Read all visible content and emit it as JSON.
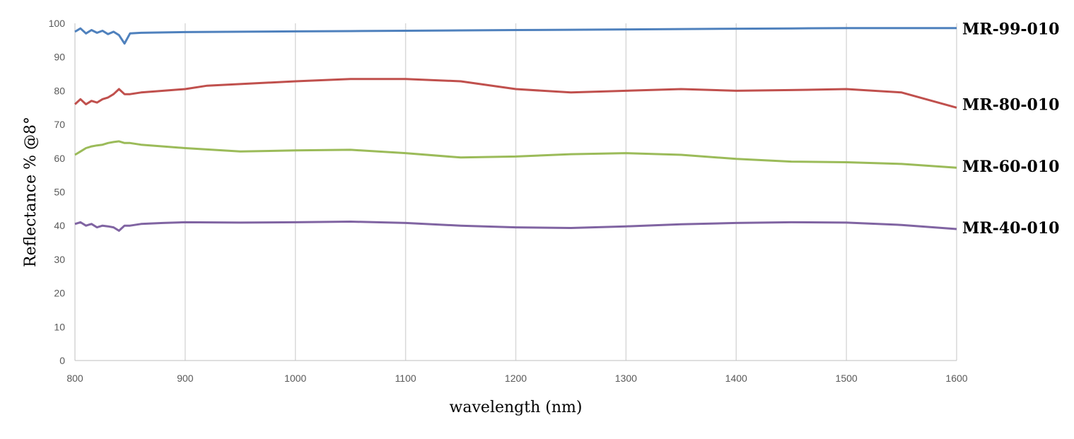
{
  "chart_data": {
    "type": "line",
    "title": "",
    "xlabel": "wavelength (nm)",
    "ylabel": "Reflectance % @8°",
    "xlim": [
      800,
      1600
    ],
    "ylim": [
      0,
      100
    ],
    "x_ticks": [
      800,
      900,
      1000,
      1100,
      1200,
      1300,
      1400,
      1500,
      1600
    ],
    "y_ticks": [
      0,
      10,
      20,
      30,
      40,
      50,
      60,
      70,
      80,
      90,
      100
    ],
    "grid": "vertical",
    "legend": "none",
    "series": [
      {
        "name": "MR-99-010",
        "color": "#4f81bd",
        "x": [
          800,
          805,
          810,
          815,
          820,
          825,
          830,
          835,
          840,
          845,
          850,
          860,
          880,
          900,
          950,
          1000,
          1050,
          1100,
          1150,
          1200,
          1250,
          1300,
          1350,
          1400,
          1450,
          1500,
          1550,
          1600
        ],
        "y": [
          97.5,
          98.5,
          97.0,
          98.0,
          97.2,
          97.8,
          96.8,
          97.5,
          96.5,
          94.0,
          97.0,
          97.2,
          97.3,
          97.4,
          97.5,
          97.6,
          97.7,
          97.8,
          97.9,
          98.0,
          98.1,
          98.2,
          98.3,
          98.4,
          98.5,
          98.6,
          98.6,
          98.6
        ]
      },
      {
        "name": "MR-80-010",
        "color": "#c0504d",
        "x": [
          800,
          805,
          810,
          815,
          820,
          825,
          830,
          835,
          840,
          845,
          850,
          860,
          880,
          900,
          920,
          950,
          1000,
          1050,
          1100,
          1150,
          1200,
          1250,
          1300,
          1350,
          1400,
          1450,
          1500,
          1550,
          1600
        ],
        "y": [
          76.0,
          77.5,
          76.0,
          77.0,
          76.5,
          77.5,
          78.0,
          79.0,
          80.5,
          79.0,
          79.0,
          79.5,
          80.0,
          80.5,
          81.5,
          82.0,
          82.8,
          83.5,
          83.5,
          82.8,
          80.5,
          79.5,
          80.0,
          80.5,
          80.0,
          80.2,
          80.5,
          79.5,
          75.0
        ]
      },
      {
        "name": "MR-60-010",
        "color": "#9bbb59",
        "x": [
          800,
          805,
          810,
          815,
          820,
          825,
          830,
          835,
          840,
          845,
          850,
          860,
          880,
          900,
          950,
          1000,
          1050,
          1100,
          1150,
          1200,
          1250,
          1300,
          1350,
          1400,
          1450,
          1500,
          1550,
          1600
        ],
        "y": [
          61.0,
          62.0,
          63.0,
          63.5,
          63.8,
          64.0,
          64.5,
          64.8,
          65.0,
          64.5,
          64.5,
          64.0,
          63.5,
          63.0,
          62.0,
          62.3,
          62.5,
          61.5,
          60.2,
          60.5,
          61.2,
          61.5,
          61.0,
          59.8,
          59.0,
          58.8,
          58.3,
          57.2
        ]
      },
      {
        "name": "MR-40-010",
        "color": "#8064a2",
        "x": [
          800,
          805,
          810,
          815,
          820,
          825,
          830,
          835,
          840,
          845,
          850,
          860,
          880,
          900,
          950,
          1000,
          1050,
          1100,
          1150,
          1200,
          1250,
          1300,
          1350,
          1400,
          1450,
          1500,
          1550,
          1600
        ],
        "y": [
          40.5,
          41.0,
          40.0,
          40.5,
          39.5,
          40.0,
          39.8,
          39.5,
          38.5,
          40.0,
          40.0,
          40.5,
          40.8,
          41.0,
          40.9,
          41.0,
          41.2,
          40.8,
          40.0,
          39.5,
          39.3,
          39.8,
          40.4,
          40.8,
          41.0,
          40.9,
          40.2,
          39.0
        ]
      }
    ]
  }
}
